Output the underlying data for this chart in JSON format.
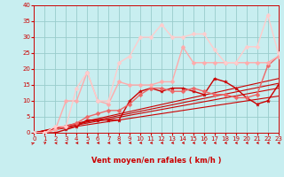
{
  "bg_color": "#c8eef0",
  "grid_color": "#99cccc",
  "xlabel": "Vent moyen/en rafales ( km/h )",
  "xlabel_color": "#cc0000",
  "tick_color": "#cc0000",
  "xlim": [
    0,
    23
  ],
  "ylim": [
    0,
    40
  ],
  "xticks": [
    0,
    1,
    2,
    3,
    4,
    5,
    6,
    7,
    8,
    9,
    10,
    11,
    12,
    13,
    14,
    15,
    16,
    17,
    18,
    19,
    20,
    21,
    22,
    23
  ],
  "yticks": [
    0,
    5,
    10,
    15,
    20,
    25,
    30,
    35,
    40
  ],
  "lines": [
    {
      "x": [
        0,
        23
      ],
      "y": [
        0,
        11.5
      ],
      "color": "#cc0000",
      "lw": 0.8,
      "marker": null
    },
    {
      "x": [
        0,
        23
      ],
      "y": [
        0,
        14.0
      ],
      "color": "#cc0000",
      "lw": 0.8,
      "marker": null
    },
    {
      "x": [
        0,
        23
      ],
      "y": [
        0,
        15.5
      ],
      "color": "#cc0000",
      "lw": 0.8,
      "marker": null
    },
    {
      "x": [
        0,
        23
      ],
      "y": [
        0,
        17.0
      ],
      "color": "#cc0000",
      "lw": 0.8,
      "marker": null
    },
    {
      "x": [
        0,
        1,
        2,
        3,
        4,
        5,
        6,
        7,
        8,
        9,
        10,
        11,
        12,
        13,
        14,
        15,
        16,
        17,
        18,
        19,
        20,
        21,
        22,
        23
      ],
      "y": [
        0,
        0,
        0,
        1,
        2,
        4,
        4,
        4,
        4,
        10,
        13,
        14,
        13,
        14,
        14,
        13,
        12,
        17,
        16,
        14,
        11,
        9,
        10,
        15
      ],
      "color": "#cc0000",
      "lw": 1.0,
      "marker": "*",
      "ms": 3.0
    },
    {
      "x": [
        0,
        1,
        2,
        3,
        4,
        5,
        6,
        7,
        8,
        9,
        10,
        11,
        12,
        13,
        14,
        15,
        16,
        17,
        18,
        19,
        20,
        21,
        22,
        23
      ],
      "y": [
        0,
        0,
        1,
        2,
        3,
        5,
        6,
        7,
        7,
        9,
        12,
        14,
        14,
        13,
        13,
        14,
        13,
        12,
        12,
        11,
        11,
        12,
        21,
        24
      ],
      "color": "#ee6666",
      "lw": 1.0,
      "marker": "D",
      "ms": 2.5
    },
    {
      "x": [
        0,
        1,
        2,
        3,
        4,
        5,
        6,
        7,
        8,
        9,
        10,
        11,
        12,
        13,
        14,
        15,
        16,
        17,
        18,
        19,
        20,
        21,
        22,
        23
      ],
      "y": [
        0,
        0,
        1,
        10,
        10,
        19,
        10,
        9,
        16,
        15,
        15,
        15,
        16,
        16,
        27,
        22,
        22,
        22,
        22,
        22,
        22,
        22,
        22,
        24
      ],
      "color": "#ffaaaa",
      "lw": 1.0,
      "marker": "D",
      "ms": 2.5
    },
    {
      "x": [
        0,
        1,
        2,
        3,
        4,
        5,
        6,
        7,
        8,
        9,
        10,
        11,
        12,
        13,
        14,
        15,
        16,
        17,
        18,
        19,
        20,
        21,
        22,
        23
      ],
      "y": [
        0,
        0,
        2,
        2,
        14,
        19,
        10,
        10,
        22,
        24,
        30,
        30,
        34,
        30,
        30,
        31,
        31,
        26,
        22,
        22,
        27,
        27,
        37,
        25
      ],
      "color": "#ffcccc",
      "lw": 1.0,
      "marker": "D",
      "ms": 2.5
    }
  ],
  "arrow_color": "#cc0000"
}
